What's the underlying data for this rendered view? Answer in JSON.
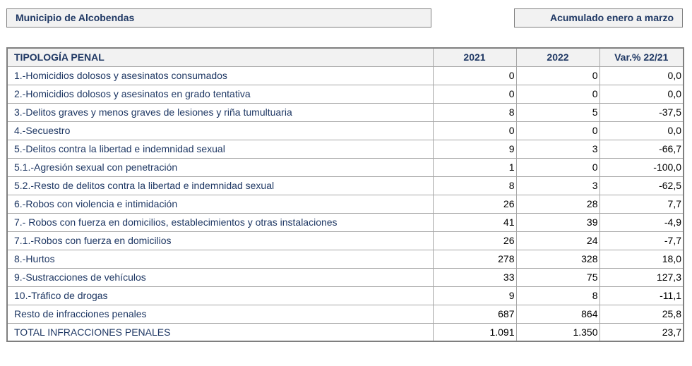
{
  "header": {
    "municipality": "Municipio de Alcobendas",
    "period": "Acumulado enero a marzo"
  },
  "table": {
    "columns": [
      "TIPOLOGÍA PENAL",
      "2021",
      "2022",
      "Var.% 22/21"
    ],
    "rows": [
      {
        "label": "1.-Homicidios dolosos y asesinatos consumados",
        "y2021": "0",
        "y2022": "0",
        "var": "0,0"
      },
      {
        "label": "2.-Homicidios dolosos y asesinatos en grado tentativa",
        "y2021": "0",
        "y2022": "0",
        "var": "0,0"
      },
      {
        "label": "3.-Delitos graves y menos graves de lesiones y riña tumultuaria",
        "y2021": "8",
        "y2022": "5",
        "var": "-37,5"
      },
      {
        "label": "4.-Secuestro",
        "y2021": "0",
        "y2022": "0",
        "var": "0,0"
      },
      {
        "label": "5.-Delitos contra la libertad e indemnidad sexual",
        "y2021": "9",
        "y2022": "3",
        "var": "-66,7"
      },
      {
        "label": "5.1.-Agresión sexual con penetración",
        "y2021": "1",
        "y2022": "0",
        "var": "-100,0"
      },
      {
        "label": "5.2.-Resto de delitos contra la libertad e indemnidad sexual",
        "y2021": "8",
        "y2022": "3",
        "var": "-62,5"
      },
      {
        "label": "6.-Robos con violencia e intimidación",
        "y2021": "26",
        "y2022": "28",
        "var": "7,7"
      },
      {
        "label": "7.- Robos con fuerza en domicilios, establecimientos y otras instalaciones",
        "y2021": "41",
        "y2022": "39",
        "var": "-4,9"
      },
      {
        "label": "7.1.-Robos con fuerza en domicilios",
        "y2021": "26",
        "y2022": "24",
        "var": "-7,7"
      },
      {
        "label": "8.-Hurtos",
        "y2021": "278",
        "y2022": "328",
        "var": "18,0"
      },
      {
        "label": "9.-Sustracciones de vehículos",
        "y2021": "33",
        "y2022": "75",
        "var": "127,3"
      },
      {
        "label": "10.-Tráfico de drogas",
        "y2021": "9",
        "y2022": "8",
        "var": "-11,1"
      },
      {
        "label": "Resto de infracciones penales",
        "y2021": "687",
        "y2022": "864",
        "var": "25,8"
      },
      {
        "label": "TOTAL INFRACCIONES PENALES",
        "y2021": "1.091",
        "y2022": "1.350",
        "var": "23,7"
      }
    ]
  }
}
